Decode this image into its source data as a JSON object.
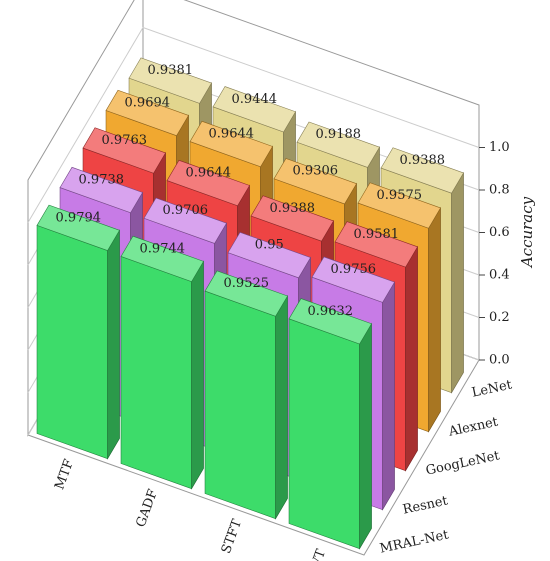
{
  "chart_data": {
    "type": "bar3d",
    "y_label": "Accuracy",
    "categories": [
      "MTF",
      "GADF",
      "STFT",
      "CWT"
    ],
    "series": [
      {
        "name": "MRAL-Net",
        "color": "#3ddc6a",
        "values": [
          0.9794,
          0.9744,
          0.9525,
          0.9632
        ]
      },
      {
        "name": "Resnet",
        "color": "#c77be6",
        "values": [
          0.9738,
          0.9706,
          0.95,
          0.9756
        ]
      },
      {
        "name": "GoogLeNet",
        "color": "#ee4444",
        "values": [
          0.9763,
          0.9644,
          0.9388,
          0.9581
        ]
      },
      {
        "name": "Alexnet",
        "color": "#f0a830",
        "values": [
          0.9694,
          0.9644,
          0.9306,
          0.9575
        ]
      },
      {
        "name": "LeNet",
        "color": "#e2d68e",
        "values": [
          0.9381,
          0.9444,
          0.9188,
          0.9388
        ]
      }
    ],
    "ylim": [
      0,
      1.2
    ],
    "yticks": [
      {
        "value": 0,
        "label": "0.0"
      },
      0.2,
      0.4,
      0.6,
      0.8,
      {
        "value": 1,
        "label": "1.0"
      }
    ],
    "grid": true
  }
}
